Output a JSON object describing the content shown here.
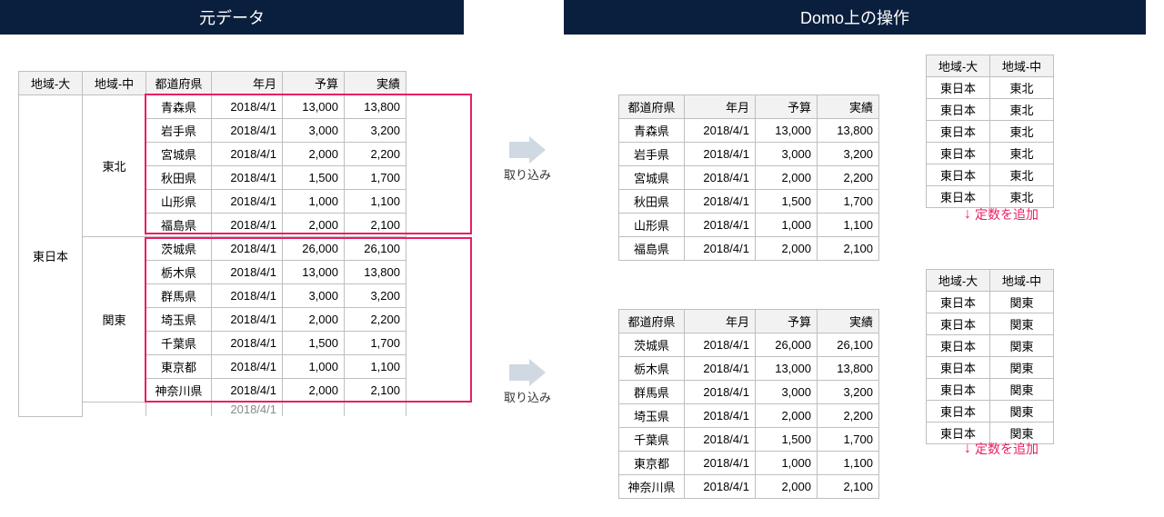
{
  "headers": {
    "left": "元データ",
    "right": "Domo上の操作"
  },
  "columns": {
    "region_big": "地域-大",
    "region_mid": "地域-中",
    "pref": "都道府県",
    "date": "年月",
    "budget": "予算",
    "actual": "実績"
  },
  "arrow_label": "取り込み",
  "annotation": "定数を追加",
  "colors": {
    "header_bg": "#0a1f3d",
    "border": "#bfbfbf",
    "highlight": "#e91e63",
    "arrow": "#d0d9e2"
  },
  "source": {
    "region_big": "東日本",
    "groups": [
      {
        "region_mid": "東北",
        "rows": [
          {
            "pref": "青森県",
            "date": "2018/4/1",
            "budget": "13,000",
            "actual": "13,800"
          },
          {
            "pref": "岩手県",
            "date": "2018/4/1",
            "budget": "3,000",
            "actual": "3,200"
          },
          {
            "pref": "宮城県",
            "date": "2018/4/1",
            "budget": "2,000",
            "actual": "2,200"
          },
          {
            "pref": "秋田県",
            "date": "2018/4/1",
            "budget": "1,500",
            "actual": "1,700"
          },
          {
            "pref": "山形県",
            "date": "2018/4/1",
            "budget": "1,000",
            "actual": "1,100"
          },
          {
            "pref": "福島県",
            "date": "2018/4/1",
            "budget": "2,000",
            "actual": "2,100"
          }
        ]
      },
      {
        "region_mid": "関東",
        "rows": [
          {
            "pref": "茨城県",
            "date": "2018/4/1",
            "budget": "26,000",
            "actual": "26,100"
          },
          {
            "pref": "栃木県",
            "date": "2018/4/1",
            "budget": "13,000",
            "actual": "13,800"
          },
          {
            "pref": "群馬県",
            "date": "2018/4/1",
            "budget": "3,000",
            "actual": "3,200"
          },
          {
            "pref": "埼玉県",
            "date": "2018/4/1",
            "budget": "2,000",
            "actual": "2,200"
          },
          {
            "pref": "千葉県",
            "date": "2018/4/1",
            "budget": "1,500",
            "actual": "1,700"
          },
          {
            "pref": "東京都",
            "date": "2018/4/1",
            "budget": "1,000",
            "actual": "1,100"
          },
          {
            "pref": "神奈川県",
            "date": "2018/4/1",
            "budget": "2,000",
            "actual": "2,100"
          }
        ]
      }
    ]
  },
  "result_sets": [
    {
      "rows": [
        {
          "pref": "青森県",
          "date": "2018/4/1",
          "budget": "13,000",
          "actual": "13,800"
        },
        {
          "pref": "岩手県",
          "date": "2018/4/1",
          "budget": "3,000",
          "actual": "3,200"
        },
        {
          "pref": "宮城県",
          "date": "2018/4/1",
          "budget": "2,000",
          "actual": "2,200"
        },
        {
          "pref": "秋田県",
          "date": "2018/4/1",
          "budget": "1,500",
          "actual": "1,700"
        },
        {
          "pref": "山形県",
          "date": "2018/4/1",
          "budget": "1,000",
          "actual": "1,100"
        },
        {
          "pref": "福島県",
          "date": "2018/4/1",
          "budget": "2,000",
          "actual": "2,100"
        }
      ],
      "region_rows": [
        {
          "big": "東日本",
          "mid": "東北"
        },
        {
          "big": "東日本",
          "mid": "東北"
        },
        {
          "big": "東日本",
          "mid": "東北"
        },
        {
          "big": "東日本",
          "mid": "東北"
        },
        {
          "big": "東日本",
          "mid": "東北"
        },
        {
          "big": "東日本",
          "mid": "東北"
        }
      ]
    },
    {
      "rows": [
        {
          "pref": "茨城県",
          "date": "2018/4/1",
          "budget": "26,000",
          "actual": "26,100"
        },
        {
          "pref": "栃木県",
          "date": "2018/4/1",
          "budget": "13,000",
          "actual": "13,800"
        },
        {
          "pref": "群馬県",
          "date": "2018/4/1",
          "budget": "3,000",
          "actual": "3,200"
        },
        {
          "pref": "埼玉県",
          "date": "2018/4/1",
          "budget": "2,000",
          "actual": "2,200"
        },
        {
          "pref": "千葉県",
          "date": "2018/4/1",
          "budget": "1,500",
          "actual": "1,700"
        },
        {
          "pref": "東京都",
          "date": "2018/4/1",
          "budget": "1,000",
          "actual": "1,100"
        },
        {
          "pref": "神奈川県",
          "date": "2018/4/1",
          "budget": "2,000",
          "actual": "2,100"
        }
      ],
      "region_rows": [
        {
          "big": "東日本",
          "mid": "関東"
        },
        {
          "big": "東日本",
          "mid": "関東"
        },
        {
          "big": "東日本",
          "mid": "関東"
        },
        {
          "big": "東日本",
          "mid": "関東"
        },
        {
          "big": "東日本",
          "mid": "関東"
        },
        {
          "big": "東日本",
          "mid": "関東"
        },
        {
          "big": "東日本",
          "mid": "関東"
        }
      ]
    }
  ]
}
